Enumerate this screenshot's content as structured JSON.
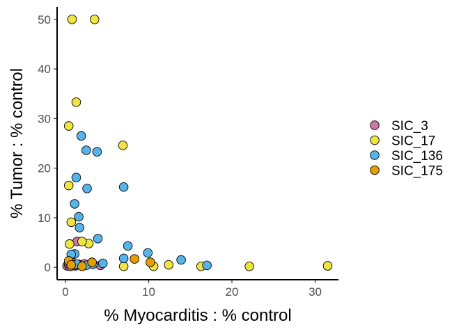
{
  "chart_data": {
    "type": "scatter",
    "xlabel": "% Myocarditis : % control",
    "ylabel": "% Tumor : % control",
    "xlim": [
      -1.0,
      32.8
    ],
    "ylim": [
      -2.5,
      52.5
    ],
    "x_ticks": [
      0,
      10,
      20,
      30
    ],
    "y_ticks": [
      0,
      10,
      20,
      30,
      40,
      50
    ],
    "grid": false,
    "legend_position": "right",
    "series": [
      {
        "name": "SIC_3",
        "color": "#CC79A7",
        "points": [
          [
            0.2,
            0.3
          ],
          [
            0.4,
            0.5
          ],
          [
            0.6,
            0.2
          ],
          [
            0.9,
            0.8
          ],
          [
            1.2,
            0.3
          ],
          [
            1.4,
            5.2
          ],
          [
            1.6,
            0.6
          ],
          [
            1.9,
            0.4
          ],
          [
            2.3,
            0.7
          ],
          [
            4.2,
            0.4
          ],
          [
            0.8,
            1.0
          ]
        ]
      },
      {
        "name": "SIC_17",
        "color": "#F0E442",
        "points": [
          [
            0.8,
            50.0
          ],
          [
            3.5,
            50.0
          ],
          [
            1.3,
            33.3
          ],
          [
            0.4,
            28.5
          ],
          [
            6.9,
            24.6
          ],
          [
            0.4,
            16.5
          ],
          [
            0.7,
            9.1
          ],
          [
            0.5,
            4.7
          ],
          [
            2.8,
            4.8
          ],
          [
            2.0,
            5.2
          ],
          [
            10.6,
            0.2
          ],
          [
            12.4,
            0.5
          ],
          [
            16.3,
            0.2
          ],
          [
            22.1,
            0.2
          ],
          [
            31.5,
            0.3
          ],
          [
            7.0,
            0.2
          ],
          [
            1.2,
            0.5
          ]
        ]
      },
      {
        "name": "SIC_136",
        "color": "#56B4E9",
        "points": [
          [
            1.9,
            26.5
          ],
          [
            2.5,
            23.6
          ],
          [
            3.8,
            23.3
          ],
          [
            1.3,
            18.1
          ],
          [
            2.6,
            15.9
          ],
          [
            7.0,
            16.2
          ],
          [
            1.1,
            12.8
          ],
          [
            1.6,
            10.2
          ],
          [
            1.7,
            8.0
          ],
          [
            3.9,
            5.8
          ],
          [
            7.5,
            4.3
          ],
          [
            9.9,
            2.9
          ],
          [
            13.9,
            1.5
          ],
          [
            7.0,
            1.8
          ],
          [
            1.1,
            2.7
          ],
          [
            0.7,
            2.6
          ],
          [
            17.0,
            0.4
          ],
          [
            4.5,
            0.8
          ],
          [
            3.3,
            0.6
          ],
          [
            2.5,
            0.4
          ],
          [
            1.4,
            0.6
          ]
        ]
      },
      {
        "name": "SIC_175",
        "color": "#E69F00",
        "points": [
          [
            10.2,
            1.0
          ],
          [
            8.3,
            1.7
          ],
          [
            3.2,
            1.0
          ],
          [
            0.4,
            1.3
          ],
          [
            0.7,
            0.5
          ],
          [
            2.0,
            0.2
          ]
        ]
      }
    ]
  }
}
